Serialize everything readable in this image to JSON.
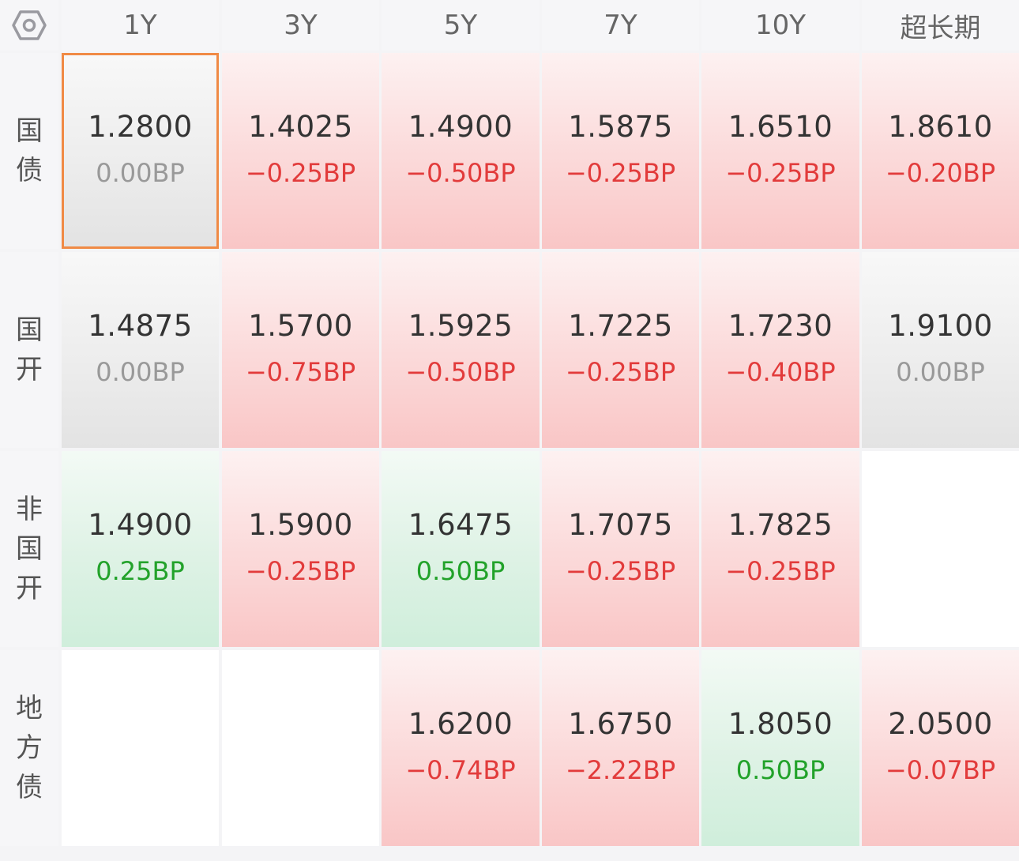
{
  "colors": {
    "up": "#e23b3b",
    "down": "#22a22a",
    "flat": "#999999",
    "selected_border": "#f08a45"
  },
  "settings_icon": "hexagon-settings-icon",
  "columns": [
    "1Y",
    "3Y",
    "5Y",
    "7Y",
    "10Y",
    "超长期"
  ],
  "rows": [
    {
      "label": [
        "国",
        "债"
      ],
      "cells": [
        {
          "value": "1.2800",
          "change": "0.00BP",
          "trend": "flat",
          "selected": true
        },
        {
          "value": "1.4025",
          "change": "−0.25BP",
          "trend": "up"
        },
        {
          "value": "1.4900",
          "change": "−0.50BP",
          "trend": "up"
        },
        {
          "value": "1.5875",
          "change": "−0.25BP",
          "trend": "up"
        },
        {
          "value": "1.6510",
          "change": "−0.25BP",
          "trend": "up"
        },
        {
          "value": "1.8610",
          "change": "−0.20BP",
          "trend": "up"
        }
      ]
    },
    {
      "label": [
        "国",
        "开"
      ],
      "cells": [
        {
          "value": "1.4875",
          "change": "0.00BP",
          "trend": "flat"
        },
        {
          "value": "1.5700",
          "change": "−0.75BP",
          "trend": "up"
        },
        {
          "value": "1.5925",
          "change": "−0.50BP",
          "trend": "up"
        },
        {
          "value": "1.7225",
          "change": "−0.25BP",
          "trend": "up"
        },
        {
          "value": "1.7230",
          "change": "−0.40BP",
          "trend": "up"
        },
        {
          "value": "1.9100",
          "change": "0.00BP",
          "trend": "flat"
        }
      ]
    },
    {
      "label": [
        "非",
        "国",
        "开"
      ],
      "cells": [
        {
          "value": "1.4900",
          "change": "0.25BP",
          "trend": "down"
        },
        {
          "value": "1.5900",
          "change": "−0.25BP",
          "trend": "up"
        },
        {
          "value": "1.6475",
          "change": "0.50BP",
          "trend": "down"
        },
        {
          "value": "1.7075",
          "change": "−0.25BP",
          "trend": "up"
        },
        {
          "value": "1.7825",
          "change": "−0.25BP",
          "trend": "up"
        },
        null
      ]
    },
    {
      "label": [
        "地",
        "方",
        "债"
      ],
      "cells": [
        null,
        null,
        {
          "value": "1.6200",
          "change": "−0.74BP",
          "trend": "up"
        },
        {
          "value": "1.6750",
          "change": "−2.22BP",
          "trend": "up"
        },
        {
          "value": "1.8050",
          "change": "0.50BP",
          "trend": "down"
        },
        {
          "value": "2.0500",
          "change": "−0.07BP",
          "trend": "up"
        }
      ]
    }
  ]
}
